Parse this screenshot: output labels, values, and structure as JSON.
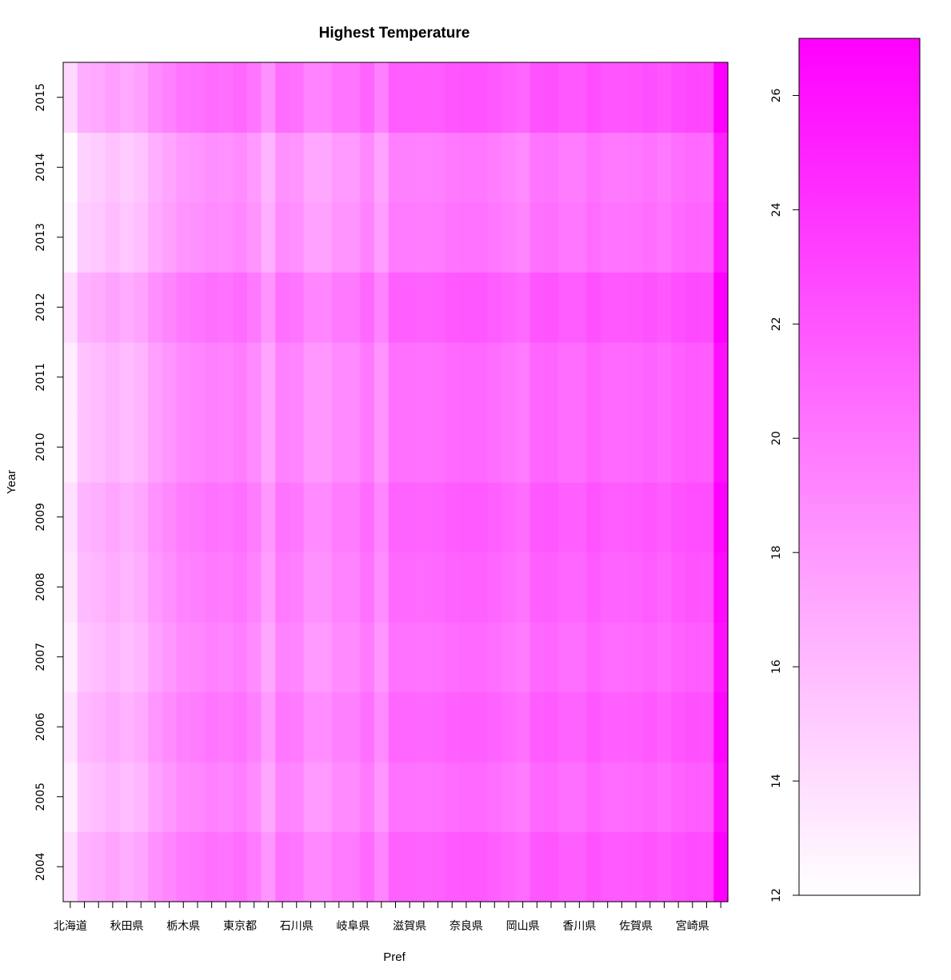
{
  "chart_data": {
    "type": "heatmap",
    "title": "Highest Temperature",
    "xlabel": "Pref",
    "ylabel": "Year",
    "x_tick_labels": [
      "北海道",
      "秋田県",
      "栃木県",
      "東京都",
      "石川県",
      "岐阜県",
      "滋賀県",
      "奈良県",
      "岡山県",
      "香川県",
      "佐賀県",
      "宮崎県"
    ],
    "x_label_every": 4,
    "n_columns": 47,
    "years": [
      2004,
      2005,
      2006,
      2007,
      2008,
      2009,
      2010,
      2011,
      2012,
      2013,
      2014,
      2015
    ],
    "colorbar_ticks": [
      12,
      14,
      16,
      18,
      20,
      22,
      24,
      26
    ],
    "colorbar_range": [
      12,
      27
    ],
    "color_low": "#ffffff",
    "color_high": "#ff00ff",
    "column_base": [
      13.8,
      16.3,
      16.6,
      17.2,
      16.6,
      17.1,
      18.3,
      18.9,
      19.6,
      19.8,
      20.2,
      20.0,
      20.4,
      19.6,
      18.0,
      20.1,
      19.9,
      18.8,
      18.8,
      19.6,
      19.6,
      20.6,
      19.0,
      21.1,
      21.1,
      21.0,
      21.1,
      21.5,
      21.6,
      21.6,
      21.3,
      20.9,
      20.5,
      21.7,
      21.8,
      21.3,
      21.3,
      22.0,
      21.5,
      21.5,
      21.6,
      21.9,
      21.5,
      22.1,
      22.4,
      22.3,
      26.8
    ],
    "year_offset": [
      0.2,
      -0.8,
      -0.1,
      -0.8,
      -0.3,
      0.1,
      -0.7,
      -0.7,
      0.3,
      -1.3,
      -1.6,
      0.5
    ]
  }
}
